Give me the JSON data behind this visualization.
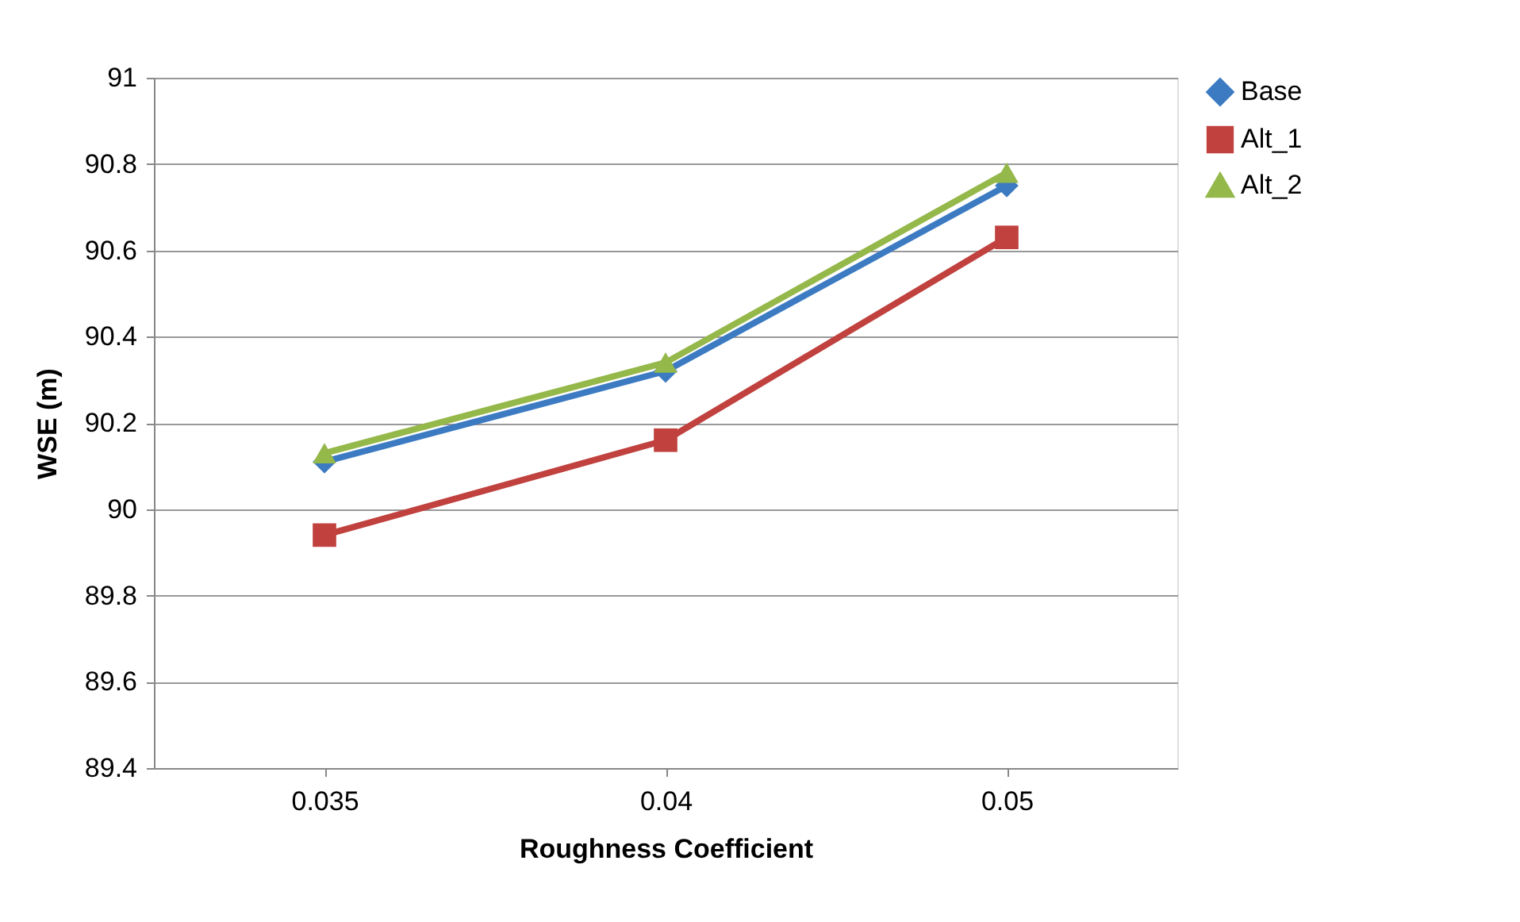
{
  "chart_data": {
    "type": "line",
    "xlabel": "Roughness Coefficient",
    "ylabel": "WSE (m)",
    "categories": [
      "0.035",
      "0.04",
      "0.05"
    ],
    "series": [
      {
        "name": "Base",
        "color": "#3c7bc2",
        "marker": "diamond",
        "values": [
          90.11,
          90.32,
          90.75
        ]
      },
      {
        "name": "Alt_1",
        "color": "#c0413e",
        "marker": "square",
        "values": [
          89.94,
          90.16,
          90.63
        ]
      },
      {
        "name": "Alt_2",
        "color": "#95b84a",
        "marker": "triangle",
        "values": [
          90.13,
          90.34,
          90.78
        ]
      }
    ],
    "ylim": [
      89.4,
      91
    ],
    "yticks": [
      89.4,
      89.6,
      89.8,
      90,
      90.2,
      90.4,
      90.6,
      90.8,
      91
    ],
    "grid": "y",
    "legend": "right"
  }
}
